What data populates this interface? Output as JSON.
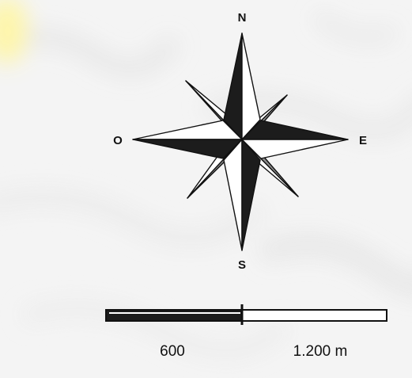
{
  "compass": {
    "north": "N",
    "south": "S",
    "east": "E",
    "west": "O"
  },
  "scale_bar": {
    "mid_label": "600",
    "end_label": "1.200 m"
  },
  "colors": {
    "background": "#f4f4f4",
    "rose_dark": "#1c1c1c",
    "rose_light": "#ffffff",
    "rose_gray": "#8c8c8c",
    "outline": "#111111",
    "accent_yellow": "#fff7a0"
  }
}
